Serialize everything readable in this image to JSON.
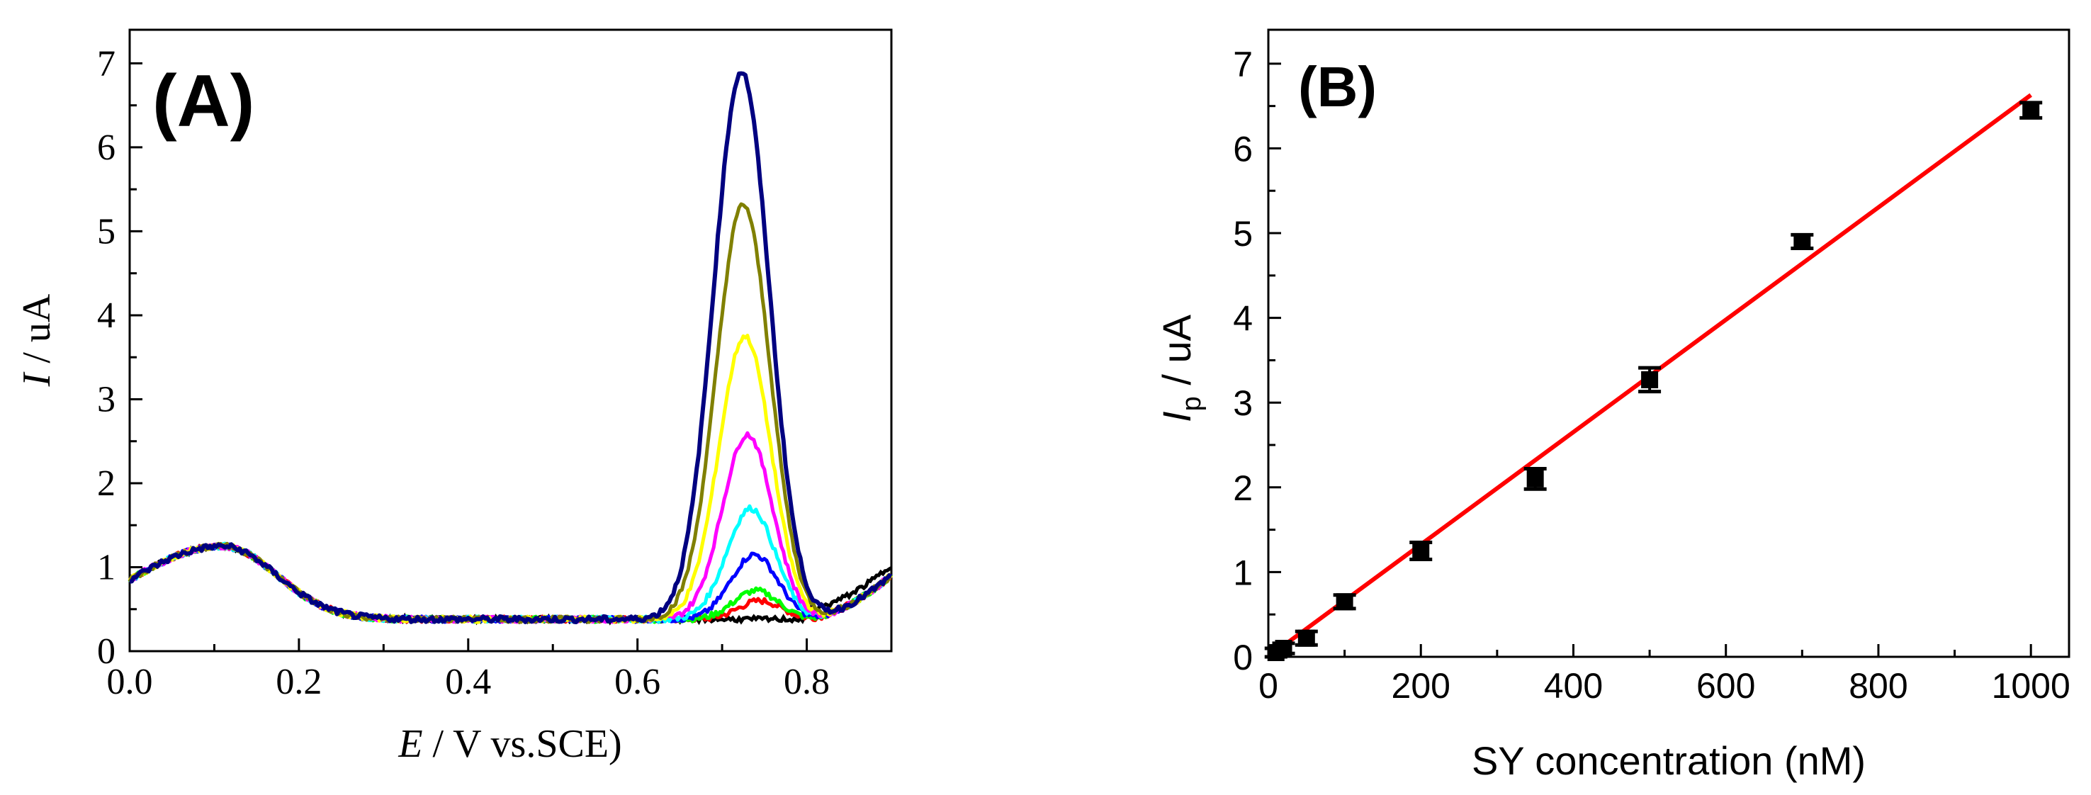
{
  "chart_data": [
    {
      "panel_label": "(A)",
      "type": "line",
      "xlabel_italic": "E",
      "xlabel_rest": " / V vs.SCE)",
      "ylabel_italic": "I",
      "ylabel_rest": " / uA",
      "xlim": [
        0.0,
        0.9
      ],
      "ylim": [
        0,
        7.4
      ],
      "x_ticks": [
        0.0,
        0.2,
        0.4,
        0.6,
        0.8
      ],
      "x_tick_labels": [
        "0.0",
        "0.2",
        "0.4",
        "0.6",
        "0.8"
      ],
      "y_ticks": [
        0,
        1,
        2,
        3,
        4,
        5,
        6,
        7
      ],
      "y_tick_labels": [
        "0",
        "1",
        "2",
        "3",
        "4",
        "5",
        "6",
        "7"
      ],
      "series": [
        {
          "name": "trace-red",
          "color": "#ff0000",
          "peak_x": 0.745,
          "peak_y": 0.6
        },
        {
          "name": "trace-green",
          "color": "#00ff00",
          "peak_x": 0.74,
          "peak_y": 0.72
        },
        {
          "name": "trace-blue",
          "color": "#0000ff",
          "peak_x": 0.738,
          "peak_y": 1.15
        },
        {
          "name": "trace-cyan",
          "color": "#00ffff",
          "peak_x": 0.734,
          "peak_y": 1.7
        },
        {
          "name": "trace-magenta",
          "color": "#ff00ff",
          "peak_x": 0.73,
          "peak_y": 2.58
        },
        {
          "name": "trace-yellow",
          "color": "#ffff00",
          "peak_x": 0.727,
          "peak_y": 3.75
        },
        {
          "name": "trace-olive",
          "color": "#808000",
          "peak_x": 0.725,
          "peak_y": 5.32
        },
        {
          "name": "trace-navy",
          "color": "#000080",
          "peak_x": 0.723,
          "peak_y": 6.9
        }
      ],
      "baseline": {
        "x0_y": 0.85,
        "hump_x": 0.11,
        "hump_y": 1.25,
        "flat_y": 0.38,
        "end_y": 0.9
      },
      "colors": {
        "axis": "#000000"
      }
    },
    {
      "panel_label": "(B)",
      "type": "scatter",
      "xlabel": "SY concentration (nM)",
      "ylabel_main": "I",
      "ylabel_sub": "p",
      "ylabel_rest": " / uA",
      "xlim": [
        0,
        1050
      ],
      "ylim": [
        0,
        7.4
      ],
      "x_ticks": [
        0,
        200,
        400,
        600,
        800,
        1000
      ],
      "x_tick_labels": [
        "0",
        "200",
        "400",
        "600",
        "800",
        "1000"
      ],
      "y_ticks": [
        0,
        1,
        2,
        3,
        4,
        5,
        6,
        7
      ],
      "y_tick_labels": [
        "0",
        "1",
        "2",
        "3",
        "4",
        "5",
        "6",
        "7"
      ],
      "points": [
        {
          "x": 10,
          "y": 0.05,
          "err": 0.05
        },
        {
          "x": 20,
          "y": 0.1,
          "err": 0.06
        },
        {
          "x": 50,
          "y": 0.22,
          "err": 0.08
        },
        {
          "x": 100,
          "y": 0.65,
          "err": 0.08
        },
        {
          "x": 200,
          "y": 1.25,
          "err": 0.1
        },
        {
          "x": 350,
          "y": 2.1,
          "err": 0.12
        },
        {
          "x": 500,
          "y": 3.27,
          "err": 0.14
        },
        {
          "x": 700,
          "y": 4.9,
          "err": 0.08
        },
        {
          "x": 1000,
          "y": 6.45,
          "err": 0.09
        }
      ],
      "fit_line": {
        "x0": 0,
        "y0": 0.0,
        "x1": 1000,
        "y1": 6.63,
        "color": "#ff0000"
      },
      "colors": {
        "axis": "#000000",
        "marker": "#000000"
      }
    }
  ]
}
